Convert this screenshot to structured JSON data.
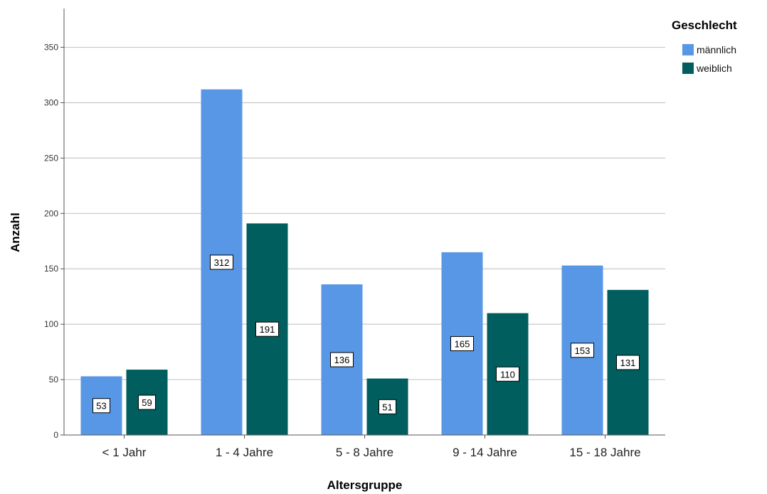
{
  "chart_data": {
    "type": "bar",
    "xlabel": "Altersgruppe",
    "ylabel": "Anzahl",
    "categories": [
      "< 1 Jahr",
      "1 - 4 Jahre",
      "5 - 8 Jahre",
      "9 - 14 Jahre",
      "15 - 18 Jahre"
    ],
    "series": [
      {
        "name": "männlich",
        "color": "#5897E5",
        "values": [
          53,
          312,
          136,
          165,
          153
        ]
      },
      {
        "name": "weiblich",
        "color": "#005E5E",
        "values": [
          59,
          191,
          51,
          110,
          131
        ]
      }
    ],
    "ylim": [
      0,
      385
    ],
    "yticks": [
      0,
      50,
      100,
      150,
      200,
      250,
      300,
      350
    ],
    "grid": true,
    "data_labels": true,
    "legend": {
      "title": "Geschlecht",
      "placement": "top-right"
    }
  }
}
